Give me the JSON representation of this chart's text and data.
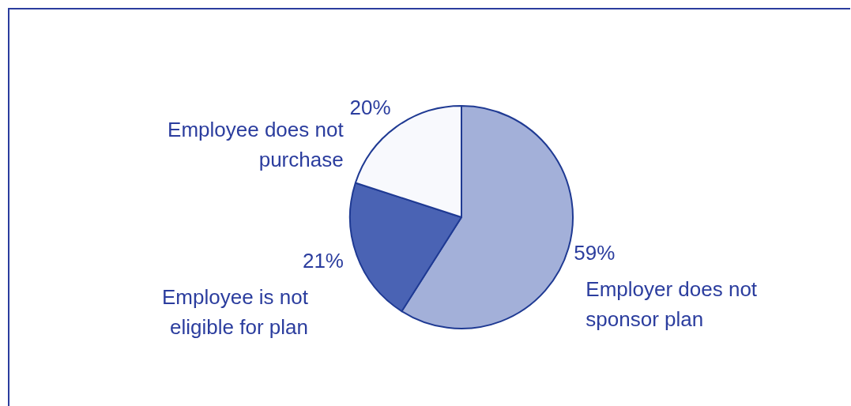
{
  "chart_data": {
    "type": "pie",
    "categories": [
      "Employer does not sponsor plan",
      "Employee is not eligible for plan",
      "Employee does not purchase"
    ],
    "values": [
      59,
      21,
      20
    ],
    "colors": [
      "#a3b0d9",
      "#4a63b4",
      "#f8f9fd"
    ],
    "value_labels": [
      "59%",
      "21%",
      "20%"
    ],
    "legend": false
  }
}
